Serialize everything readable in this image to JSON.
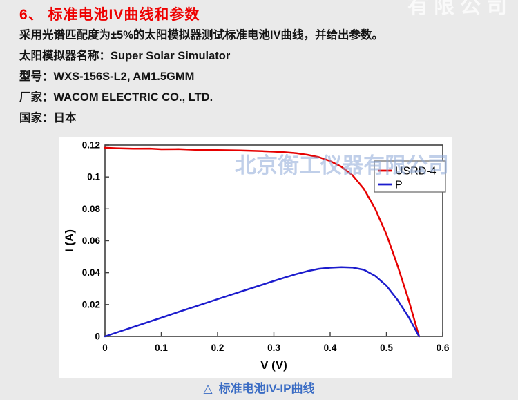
{
  "page": {
    "bg_color": "#eaeaea",
    "title": "6、 标准电池IV曲线和参数",
    "title_color": "#ee0000",
    "lines": [
      "采用光谱匹配度为±5%的太阳模拟器测试标准电池IV曲线，并给出参数。",
      "太阳模拟器名称：Super Solar Simulator",
      "型号：WXS-156S-L2, AM1.5GMM",
      "厂家：WACOM ELECTRIC CO., LTD.",
      "国家：日本"
    ],
    "watermark": "北京衡工仪器有限公司",
    "watermark_color": "#8ea9d8",
    "watermark_faint_top": "有限公司",
    "caption_marker": "△",
    "caption": "标准电池IV-IP曲线",
    "caption_color": "#3a6cc4"
  },
  "chart_data": {
    "type": "line",
    "title": "",
    "xlabel": "V (V)",
    "ylabel": "I (A)",
    "xlim": [
      0,
      0.6
    ],
    "ylim": [
      0,
      0.12
    ],
    "xticks": [
      0,
      0.1,
      0.2,
      0.3,
      0.4,
      0.5,
      0.6
    ],
    "yticks": [
      0,
      0.02,
      0.04,
      0.06,
      0.08,
      0.1,
      0.12
    ],
    "grid": false,
    "legend_position": "upper right",
    "axis_color": "#3f3f3f",
    "series": [
      {
        "name": "USRD-4",
        "color": "#e60000",
        "x": [
          0,
          0.02,
          0.05,
          0.08,
          0.1,
          0.13,
          0.16,
          0.2,
          0.24,
          0.28,
          0.3,
          0.32,
          0.34,
          0.36,
          0.38,
          0.4,
          0.42,
          0.44,
          0.46,
          0.48,
          0.5,
          0.52,
          0.54,
          0.558
        ],
        "y": [
          0.1183,
          0.118,
          0.1177,
          0.1178,
          0.1174,
          0.1175,
          0.1171,
          0.1169,
          0.1166,
          0.1162,
          0.1159,
          0.1155,
          0.1149,
          0.1139,
          0.1124,
          0.11,
          0.1064,
          0.101,
          0.0925,
          0.08,
          0.064,
          0.0442,
          0.0222,
          0
        ]
      },
      {
        "name": "P",
        "color": "#1c1ccd",
        "x": [
          0,
          0.02,
          0.05,
          0.08,
          0.1,
          0.13,
          0.16,
          0.2,
          0.24,
          0.28,
          0.3,
          0.32,
          0.34,
          0.36,
          0.38,
          0.4,
          0.42,
          0.44,
          0.46,
          0.48,
          0.5,
          0.52,
          0.54,
          0.558
        ],
        "y": [
          0,
          0.0024,
          0.0059,
          0.0094,
          0.0117,
          0.0153,
          0.0187,
          0.0234,
          0.028,
          0.0325,
          0.0348,
          0.037,
          0.0391,
          0.041,
          0.0424,
          0.0431,
          0.0434,
          0.0432,
          0.0418,
          0.038,
          0.0318,
          0.0228,
          0.0118,
          0
        ]
      }
    ]
  }
}
